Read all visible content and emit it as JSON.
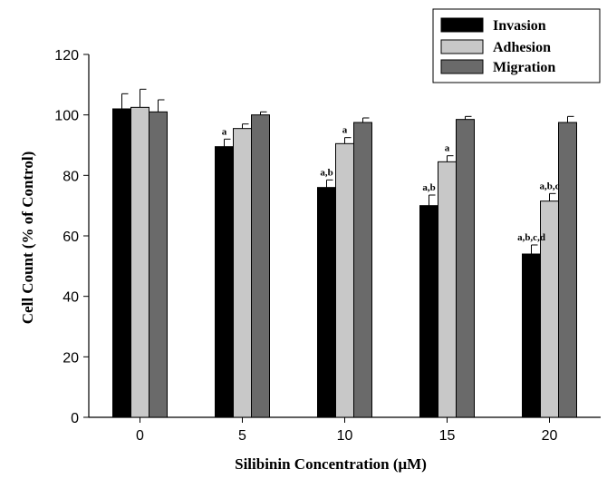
{
  "chart_data": {
    "type": "bar",
    "title": "",
    "xlabel": "Silibinin Concentration (μM)",
    "ylabel": "Cell Count (% of Control)",
    "ylim": [
      0,
      120
    ],
    "yticks": [
      0,
      20,
      40,
      60,
      80,
      100,
      120
    ],
    "categories": [
      "0",
      "5",
      "10",
      "15",
      "20"
    ],
    "legend_position": "top-right",
    "grid": false,
    "series": [
      {
        "name": "Invasion",
        "color": "#000000",
        "values": [
          102,
          89.5,
          76,
          70,
          54
        ],
        "errors": [
          5,
          2.5,
          2.5,
          3.5,
          3
        ],
        "labels": [
          "",
          "a",
          "a,b",
          "a,b",
          "a,b,c,d"
        ]
      },
      {
        "name": "Adhesion",
        "color": "#c8c8c8",
        "values": [
          102.5,
          95.5,
          90.5,
          84.5,
          71.5
        ],
        "errors": [
          6,
          1.5,
          2,
          2,
          2.5
        ],
        "labels": [
          "",
          "",
          "a",
          "a",
          "a,b,c"
        ]
      },
      {
        "name": "Migration",
        "color": "#6a6a6a",
        "values": [
          101,
          100,
          97.5,
          98.5,
          97.5
        ],
        "errors": [
          4,
          1,
          1.5,
          1,
          2
        ],
        "labels": [
          "",
          "",
          "",
          "",
          ""
        ]
      }
    ]
  }
}
